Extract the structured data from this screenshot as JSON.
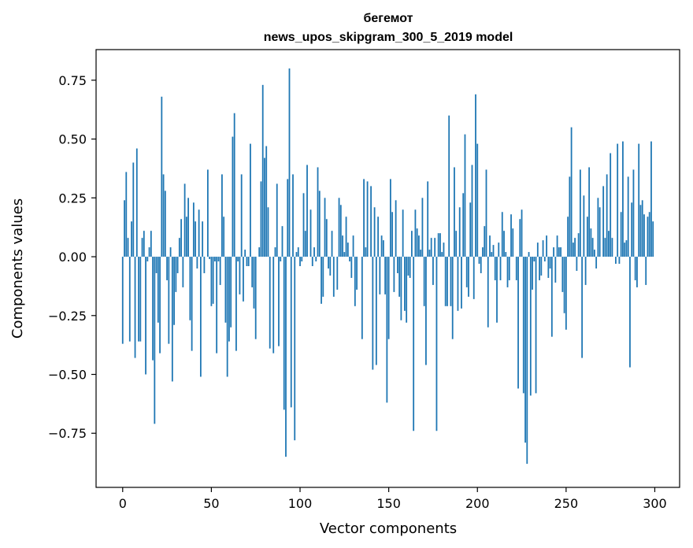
{
  "chart_data": {
    "type": "bar",
    "title": [
      "бегемот",
      "news_upos_skipgram_300_5_2019 model"
    ],
    "xlabel": "Vector components",
    "ylabel": "Components values",
    "xlim": [
      -15,
      314
    ],
    "ylim": [
      -0.98,
      0.88
    ],
    "xticks": [
      0,
      50,
      100,
      150,
      200,
      250,
      300
    ],
    "xtick_labels": [
      "0",
      "50",
      "100",
      "150",
      "200",
      "250",
      "300"
    ],
    "yticks": [
      -0.75,
      -0.5,
      -0.25,
      0.0,
      0.25,
      0.5,
      0.75
    ],
    "ytick_labels": [
      "−0.75",
      "−0.50",
      "−0.25",
      "0.00",
      "0.25",
      "0.50",
      "0.75"
    ],
    "grid": false,
    "bar_color": "#1f77b4",
    "x": [
      0,
      1,
      2,
      3,
      4,
      5,
      6,
      7,
      8,
      9,
      10,
      11,
      12,
      13,
      14,
      15,
      16,
      17,
      18,
      19,
      20,
      21,
      22,
      23,
      24,
      25,
      26,
      27,
      28,
      29,
      30,
      31,
      32,
      33,
      34,
      35,
      36,
      37,
      38,
      39,
      40,
      41,
      42,
      43,
      44,
      45,
      46,
      47,
      48,
      49,
      50,
      51,
      52,
      53,
      54,
      55,
      56,
      57,
      58,
      59,
      60,
      61,
      62,
      63,
      64,
      65,
      66,
      67,
      68,
      69,
      70,
      71,
      72,
      73,
      74,
      75,
      76,
      77,
      78,
      79,
      80,
      81,
      82,
      83,
      84,
      85,
      86,
      87,
      88,
      89,
      90,
      91,
      92,
      93,
      94,
      95,
      96,
      97,
      98,
      99,
      100,
      101,
      102,
      103,
      104,
      105,
      106,
      107,
      108,
      109,
      110,
      111,
      112,
      113,
      114,
      115,
      116,
      117,
      118,
      119,
      120,
      121,
      122,
      123,
      124,
      125,
      126,
      127,
      128,
      129,
      130,
      131,
      132,
      133,
      134,
      135,
      136,
      137,
      138,
      139,
      140,
      141,
      142,
      143,
      144,
      145,
      146,
      147,
      148,
      149,
      150,
      151,
      152,
      153,
      154,
      155,
      156,
      157,
      158,
      159,
      160,
      161,
      162,
      163,
      164,
      165,
      166,
      167,
      168,
      169,
      170,
      171,
      172,
      173,
      174,
      175,
      176,
      177,
      178,
      179,
      180,
      181,
      182,
      183,
      184,
      185,
      186,
      187,
      188,
      189,
      190,
      191,
      192,
      193,
      194,
      195,
      196,
      197,
      198,
      199,
      200,
      201,
      202,
      203,
      204,
      205,
      206,
      207,
      208,
      209,
      210,
      211,
      212,
      213,
      214,
      215,
      216,
      217,
      218,
      219,
      220,
      221,
      222,
      223,
      224,
      225,
      226,
      227,
      228,
      229,
      230,
      231,
      232,
      233,
      234,
      235,
      236,
      237,
      238,
      239,
      240,
      241,
      242,
      243,
      244,
      245,
      246,
      247,
      248,
      249,
      250,
      251,
      252,
      253,
      254,
      255,
      256,
      257,
      258,
      259,
      260,
      261,
      262,
      263,
      264,
      265,
      266,
      267,
      268,
      269,
      270,
      271,
      272,
      273,
      274,
      275,
      276,
      277,
      278,
      279,
      280,
      281,
      282,
      283,
      284,
      285,
      286,
      287,
      288,
      289,
      290,
      291,
      292,
      293,
      294,
      295,
      296,
      297,
      298,
      299
    ],
    "values": [
      -0.37,
      0.24,
      0.36,
      0.08,
      -0.36,
      0.15,
      0.4,
      -0.43,
      0.46,
      -0.36,
      -0.36,
      0.08,
      0.11,
      -0.5,
      -0.02,
      0.04,
      0.11,
      -0.44,
      -0.71,
      -0.07,
      -0.28,
      -0.41,
      0.68,
      0.35,
      0.28,
      -0.1,
      -0.37,
      0.04,
      -0.53,
      -0.29,
      -0.15,
      -0.07,
      0.08,
      0.16,
      -0.13,
      0.31,
      0.17,
      0.25,
      -0.27,
      -0.4,
      0.23,
      0.15,
      -0.05,
      0.2,
      -0.51,
      0.15,
      -0.07,
      0.0,
      0.37,
      -0.01,
      -0.21,
      -0.2,
      -0.02,
      -0.41,
      -0.02,
      -0.12,
      0.35,
      0.17,
      -0.28,
      -0.51,
      -0.36,
      -0.3,
      0.51,
      0.61,
      -0.4,
      -0.02,
      -0.16,
      0.35,
      -0.19,
      0.03,
      -0.04,
      -0.04,
      0.48,
      -0.13,
      -0.22,
      -0.35,
      0.0,
      0.04,
      0.32,
      0.73,
      0.42,
      0.47,
      0.21,
      -0.39,
      0.0,
      -0.41,
      0.04,
      0.31,
      -0.38,
      -0.02,
      0.13,
      -0.65,
      -0.85,
      0.33,
      0.8,
      -0.64,
      0.35,
      -0.78,
      0.02,
      0.04,
      -0.04,
      -0.02,
      0.27,
      0.11,
      0.39,
      0.0,
      0.2,
      -0.04,
      0.04,
      -0.02,
      0.38,
      0.28,
      -0.2,
      -0.17,
      0.25,
      0.16,
      -0.05,
      -0.08,
      0.11,
      -0.17,
      0.0,
      -0.14,
      0.25,
      0.22,
      0.09,
      0.02,
      0.17,
      0.06,
      -0.02,
      -0.09,
      0.09,
      -0.21,
      -0.14,
      0.0,
      0.0,
      -0.35,
      0.33,
      0.04,
      0.32,
      0.0,
      0.3,
      -0.48,
      0.21,
      -0.46,
      0.17,
      -0.16,
      0.09,
      0.07,
      -0.16,
      -0.62,
      -0.35,
      0.33,
      0.19,
      -0.15,
      0.24,
      -0.07,
      -0.17,
      -0.27,
      0.2,
      -0.23,
      -0.28,
      -0.08,
      -0.09,
      0.11,
      -0.74,
      0.2,
      0.12,
      0.09,
      0.03,
      0.25,
      -0.21,
      -0.46,
      0.32,
      0.03,
      0.08,
      -0.12,
      0.08,
      -0.74,
      0.1,
      0.1,
      0.02,
      0.06,
      -0.21,
      -0.21,
      0.6,
      -0.21,
      -0.35,
      0.38,
      0.11,
      -0.23,
      0.21,
      -0.22,
      0.27,
      0.52,
      -0.13,
      -0.17,
      0.23,
      0.39,
      -0.18,
      0.69,
      0.48,
      -0.03,
      -0.07,
      0.04,
      0.13,
      0.37,
      -0.3,
      0.09,
      0.02,
      0.05,
      -0.1,
      -0.28,
      0.06,
      -0.1,
      0.19,
      0.11,
      0.02,
      -0.13,
      -0.1,
      0.18,
      0.12,
      0.0,
      -0.1,
      -0.56,
      0.16,
      0.2,
      -0.58,
      -0.79,
      -0.88,
      0.02,
      -0.59,
      -0.14,
      -0.02,
      -0.58,
      0.06,
      -0.1,
      -0.08,
      0.07,
      -0.02,
      0.09,
      -0.09,
      -0.05,
      -0.34,
      0.04,
      -0.11,
      0.09,
      0.04,
      0.04,
      -0.15,
      -0.24,
      -0.31,
      0.17,
      0.34,
      0.55,
      0.06,
      0.08,
      -0.06,
      0.1,
      0.37,
      -0.43,
      0.26,
      -0.12,
      0.17,
      0.38,
      0.12,
      0.08,
      0.03,
      -0.05,
      0.25,
      0.21,
      0.0,
      0.3,
      0.08,
      0.35,
      0.11,
      0.44,
      0.08,
      0.0,
      -0.03,
      0.48,
      -0.03,
      0.19,
      0.49,
      0.06,
      0.07,
      0.34,
      -0.47,
      0.23,
      0.37,
      -0.1,
      -0.13,
      0.48,
      0.22,
      0.24,
      0.18,
      -0.12,
      0.17,
      0.19,
      0.49,
      0.15
    ]
  }
}
